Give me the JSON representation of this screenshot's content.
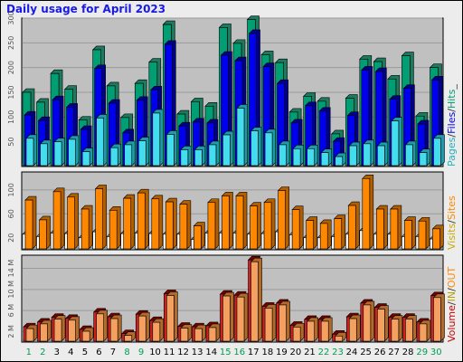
{
  "title": "Daily usage for April 2023",
  "colors": {
    "hits_front": "#009e73",
    "hits_back": "#1d7a5e",
    "files_front": "#0000ee",
    "files_back": "#00008a",
    "pages_front": "#44ddee",
    "pages_back": "#1f9aa8",
    "visits_front": "#ff8800",
    "visits_back": "#b35f00",
    "sites": "#ff8800",
    "kbytes_front": "#f4a060",
    "kbytes_back": "#cc2222",
    "plot_bg": "#c0c0c0",
    "grid": "#9a9a9a"
  },
  "legend": {
    "top": {
      "pages": "Pages",
      "files": "Files",
      "hits": "Hits"
    },
    "middle": {
      "visits": "Visits",
      "sites": "Sites"
    },
    "bottom": {
      "volume": "Volume",
      "in": "IN",
      "out": "OUT"
    }
  },
  "chart_data": [
    {
      "type": "bar",
      "panel": "hits-files-pages",
      "categories": [
        "1",
        "2",
        "3",
        "4",
        "5",
        "6",
        "7",
        "8",
        "9",
        "10",
        "11",
        "12",
        "13",
        "14",
        "15",
        "16",
        "17",
        "18",
        "19",
        "20",
        "21",
        "22",
        "23",
        "24",
        "25",
        "26",
        "27",
        "28",
        "29",
        "30"
      ],
      "ylim": [
        0,
        300
      ],
      "yticks": [
        50,
        100,
        150,
        200,
        250,
        300
      ],
      "grid": true,
      "series": [
        {
          "name": "Hits",
          "values": [
            150,
            130,
            188,
            156,
            94,
            236,
            163,
            99,
            168,
            211,
            287,
            106,
            131,
            122,
            281,
            249,
            297,
            226,
            210,
            110,
            142,
            132,
            66,
            138,
            217,
            212,
            177,
            224,
            102,
            200
          ]
        },
        {
          "name": "Files",
          "values": [
            104,
            93,
            135,
            120,
            75,
            198,
            128,
            68,
            134,
            155,
            247,
            82,
            90,
            88,
            225,
            214,
            269,
            202,
            168,
            88,
            123,
            112,
            51,
            103,
            195,
            192,
            136,
            158,
            86,
            175
          ]
        },
        {
          "name": "Pages",
          "values": [
            57,
            46,
            50,
            55,
            30,
            98,
            38,
            44,
            52,
            108,
            65,
            34,
            34,
            44,
            64,
            118,
            72,
            68,
            44,
            36,
            36,
            28,
            20,
            42,
            46,
            42,
            92,
            44,
            28,
            57
          ]
        }
      ]
    },
    {
      "type": "bar",
      "panel": "visits-sites",
      "categories": [
        "1",
        "2",
        "3",
        "4",
        "5",
        "6",
        "7",
        "8",
        "9",
        "10",
        "11",
        "12",
        "13",
        "14",
        "15",
        "16",
        "17",
        "18",
        "19",
        "20",
        "21",
        "22",
        "23",
        "24",
        "25",
        "26",
        "27",
        "28",
        "29",
        "30"
      ],
      "ylim": [
        0,
        130
      ],
      "yticks": [
        20,
        60,
        100
      ],
      "grid": true,
      "series": [
        {
          "name": "Visits",
          "values": [
            83,
            50,
            97,
            88,
            68,
            102,
            66,
            86,
            95,
            85,
            80,
            76,
            40,
            79,
            90,
            90,
            73,
            79,
            99,
            67,
            49,
            44,
            52,
            74,
            119,
            68,
            68,
            49,
            48,
            35
          ]
        },
        {
          "name": "Sites",
          "values": [
            26,
            22,
            28,
            27,
            20,
            30,
            22,
            27,
            28,
            27,
            26,
            26,
            17,
            28,
            28,
            28,
            26,
            27,
            30,
            25,
            20,
            20,
            22,
            26,
            32,
            26,
            26,
            22,
            22,
            18
          ]
        }
      ]
    },
    {
      "type": "bar",
      "panel": "volume",
      "categories": [
        "1",
        "2",
        "3",
        "4",
        "5",
        "6",
        "7",
        "8",
        "9",
        "10",
        "11",
        "12",
        "13",
        "14",
        "15",
        "16",
        "17",
        "18",
        "19",
        "20",
        "21",
        "22",
        "23",
        "24",
        "25",
        "26",
        "27",
        "28",
        "29",
        "30"
      ],
      "ylim": [
        0,
        16.5
      ],
      "yticks": [
        2,
        6,
        10,
        14
      ],
      "yticklabels": [
        "2 M",
        "6 M",
        "10 M",
        "14 M"
      ],
      "grid": true,
      "series": [
        {
          "name": "Volume",
          "values": [
            2.9,
            3.8,
            4.7,
            4.5,
            2.4,
            5.7,
            4.8,
            1.6,
            5.3,
            4.1,
            9.2,
            3.0,
            2.9,
            3.1,
            9.1,
            8.9,
            15.6,
            6.8,
            7.4,
            3.2,
            4.3,
            4.3,
            1.5,
            4.8,
            7.4,
            6.6,
            4.7,
            4.7,
            3.8,
            8.8
          ]
        }
      ]
    }
  ]
}
